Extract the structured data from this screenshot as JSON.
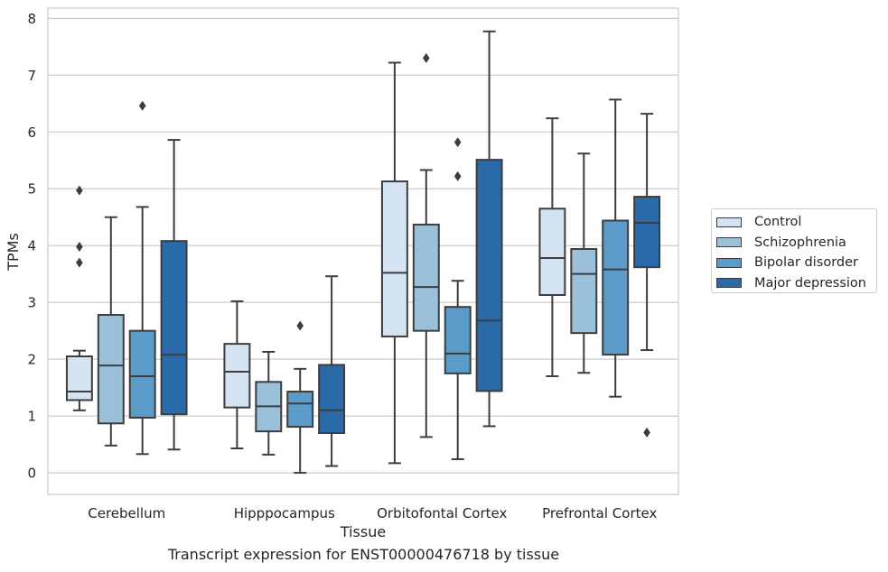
{
  "caption": "Transcript expression for ENST00000476718 by tissue",
  "chart_data": {
    "type": "boxplot",
    "title": "",
    "xlabel": "Tissue",
    "ylabel": "TPMs",
    "ylim": [
      -0.38,
      8.18
    ],
    "yticks": [
      0,
      1,
      2,
      3,
      4,
      5,
      6,
      7,
      8
    ],
    "grid": "horizontal",
    "legend_position": "right",
    "categories": [
      "Cerebellum",
      "Hipppocampus",
      "Orbitofontal Cortex",
      "Prefrontal Cortex"
    ],
    "series": [
      {
        "name": "Control",
        "color": "#d4e3f2",
        "boxes": [
          {
            "whislo": 1.1,
            "q1": 1.28,
            "med": 1.43,
            "q3": 2.05,
            "whishi": 2.15,
            "fliers": [
              4.97,
              3.98,
              3.7
            ]
          },
          {
            "whislo": 0.43,
            "q1": 1.15,
            "med": 1.78,
            "q3": 2.27,
            "whishi": 3.02,
            "fliers": []
          },
          {
            "whislo": 0.17,
            "q1": 2.4,
            "med": 3.52,
            "q3": 5.13,
            "whishi": 7.22,
            "fliers": []
          },
          {
            "whislo": 1.7,
            "q1": 3.13,
            "med": 3.78,
            "q3": 4.65,
            "whishi": 6.24,
            "fliers": []
          }
        ]
      },
      {
        "name": "Schizophrenia",
        "color": "#9ac0da",
        "boxes": [
          {
            "whislo": 0.48,
            "q1": 0.87,
            "med": 1.89,
            "q3": 2.78,
            "whishi": 4.5,
            "fliers": []
          },
          {
            "whislo": 0.32,
            "q1": 0.73,
            "med": 1.17,
            "q3": 1.6,
            "whishi": 2.13,
            "fliers": []
          },
          {
            "whislo": 0.63,
            "q1": 2.5,
            "med": 3.27,
            "q3": 4.37,
            "whishi": 5.33,
            "fliers": [
              7.3
            ]
          },
          {
            "whislo": 1.76,
            "q1": 2.46,
            "med": 3.5,
            "q3": 3.94,
            "whishi": 5.62,
            "fliers": []
          }
        ]
      },
      {
        "name": "Bipolar disorder",
        "color": "#5b9bc9",
        "boxes": [
          {
            "whislo": 0.33,
            "q1": 0.97,
            "med": 1.7,
            "q3": 2.5,
            "whishi": 4.68,
            "fliers": [
              6.46
            ]
          },
          {
            "whislo": 0.0,
            "q1": 0.81,
            "med": 1.22,
            "q3": 1.43,
            "whishi": 1.83,
            "fliers": [
              2.59
            ]
          },
          {
            "whislo": 0.24,
            "q1": 1.75,
            "med": 2.1,
            "q3": 2.92,
            "whishi": 3.38,
            "fliers": [
              5.82,
              5.22
            ]
          },
          {
            "whislo": 1.34,
            "q1": 2.08,
            "med": 3.58,
            "q3": 4.44,
            "whishi": 6.57,
            "fliers": []
          }
        ]
      },
      {
        "name": "Major depression",
        "color": "#2a6aa8",
        "boxes": [
          {
            "whislo": 0.41,
            "q1": 1.03,
            "med": 2.08,
            "q3": 4.08,
            "whishi": 5.86,
            "fliers": []
          },
          {
            "whislo": 0.12,
            "q1": 0.7,
            "med": 1.1,
            "q3": 1.9,
            "whishi": 3.46,
            "fliers": []
          },
          {
            "whislo": 0.82,
            "q1": 1.44,
            "med": 2.68,
            "q3": 5.51,
            "whishi": 7.77,
            "fliers": []
          },
          {
            "whislo": 2.16,
            "q1": 3.62,
            "med": 4.4,
            "q3": 4.86,
            "whishi": 6.32,
            "fliers": [
              0.71
            ]
          }
        ]
      }
    ]
  }
}
